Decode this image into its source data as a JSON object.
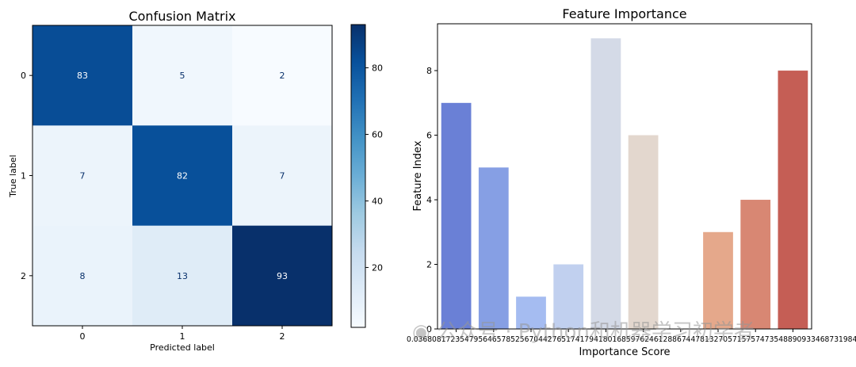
{
  "chart_data": [
    {
      "type": "heatmap",
      "title": "Confusion Matrix",
      "xlabel": "Predicted label",
      "ylabel": "True label",
      "x_ticks": [
        "0",
        "1",
        "2"
      ],
      "y_ticks": [
        "0",
        "1",
        "2"
      ],
      "matrix": [
        [
          83,
          5,
          2
        ],
        [
          7,
          82,
          7
        ],
        [
          8,
          13,
          93
        ]
      ],
      "colormap": "Blues",
      "colorbar_ticks": [
        20,
        40,
        60,
        80
      ],
      "colorbar_range": [
        2,
        93
      ]
    },
    {
      "type": "bar",
      "title": "Feature Importance",
      "xlabel": "Importance Score",
      "ylabel": "Feature Index",
      "ylim": [
        0,
        9.45
      ],
      "y_ticks": [
        0,
        2,
        4,
        6,
        8
      ],
      "bars": [
        {
          "value": 7,
          "color": "#6a80d6"
        },
        {
          "value": 5,
          "color": "#869fe4"
        },
        {
          "value": 1,
          "color": "#a5bcf1"
        },
        {
          "value": 2,
          "color": "#c1d0ef"
        },
        {
          "value": 9,
          "color": "#d4dae7"
        },
        {
          "value": 6,
          "color": "#e3d7ce"
        },
        {
          "value": 0,
          "color": "#eec9b5"
        },
        {
          "value": 3,
          "color": "#e5a88b"
        },
        {
          "value": 4,
          "color": "#d88773"
        },
        {
          "value": 8,
          "color": "#c55e55"
        }
      ],
      "x_tick_text": "0.036808172…  (overlapping importance values)  …73198444",
      "x_tick_first": "0.03680817",
      "x_tick_last": "73198444"
    }
  ],
  "watermark": "公众号 · Python和机器学习初学者"
}
